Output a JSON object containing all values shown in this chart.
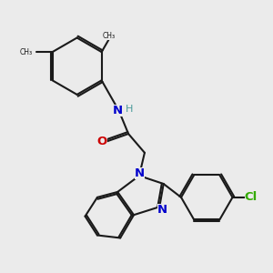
{
  "bg_color": "#ebebeb",
  "bond_color": "#1a1a1a",
  "N_color": "#0000cc",
  "O_color": "#cc0000",
  "Cl_color": "#33aa00",
  "H_color": "#4a9a9a",
  "lw": 1.5,
  "fs": 9.5,
  "xlim": [
    0,
    10
  ],
  "ylim": [
    0,
    10
  ]
}
